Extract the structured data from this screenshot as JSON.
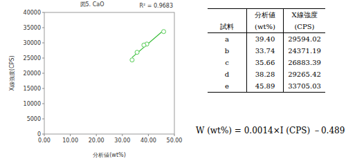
{
  "chart_data": {
    "type": "scatter",
    "title": "図5. CaO",
    "x_label": "分析値(wt%)",
    "y_label": "X線強度(CPS)",
    "x": [
      39.4,
      33.74,
      35.66,
      38.28,
      45.89
    ],
    "values": [
      29594.02,
      24371.19,
      26883.39,
      29265.42,
      33705.03
    ],
    "color": "#55cc55",
    "marker": "circle",
    "xlim": [
      0,
      50
    ],
    "xticks": [
      {
        "value": 0,
        "label": "0.00"
      },
      {
        "value": 10,
        "label": "10.00"
      },
      {
        "value": 20,
        "label": "20.00"
      },
      {
        "value": 30,
        "label": "30.00"
      },
      {
        "value": 40,
        "label": "40.00"
      },
      {
        "value": 50,
        "label": "50.00"
      }
    ],
    "ylim": [
      0,
      40000
    ],
    "yticks": [
      0,
      5000,
      10000,
      15000,
      20000,
      25000,
      30000,
      35000,
      40000
    ],
    "grid": false,
    "trendline": {
      "x": [
        33.74,
        45.89
      ],
      "y": [
        25191,
        34134
      ],
      "color": "#33bb33",
      "annotation": "R² = 0.9683"
    }
  },
  "table": {
    "columns": [
      {
        "name": "試料",
        "unit": ""
      },
      {
        "name": "分析値",
        "unit": "(wt%)"
      },
      {
        "name": "X線強度",
        "unit": "(CPS)"
      }
    ],
    "rows": [
      [
        "a",
        "39.40",
        "29594.02"
      ],
      [
        "b",
        "33.74",
        "24371.19"
      ],
      [
        "c",
        "35.66",
        "26883.39"
      ],
      [
        "d",
        "38.28",
        "29265.42"
      ],
      [
        "e",
        "45.89",
        "33705.03"
      ]
    ]
  },
  "formula": "W (wt%) = 0.0014×I (CPS) －0.489"
}
